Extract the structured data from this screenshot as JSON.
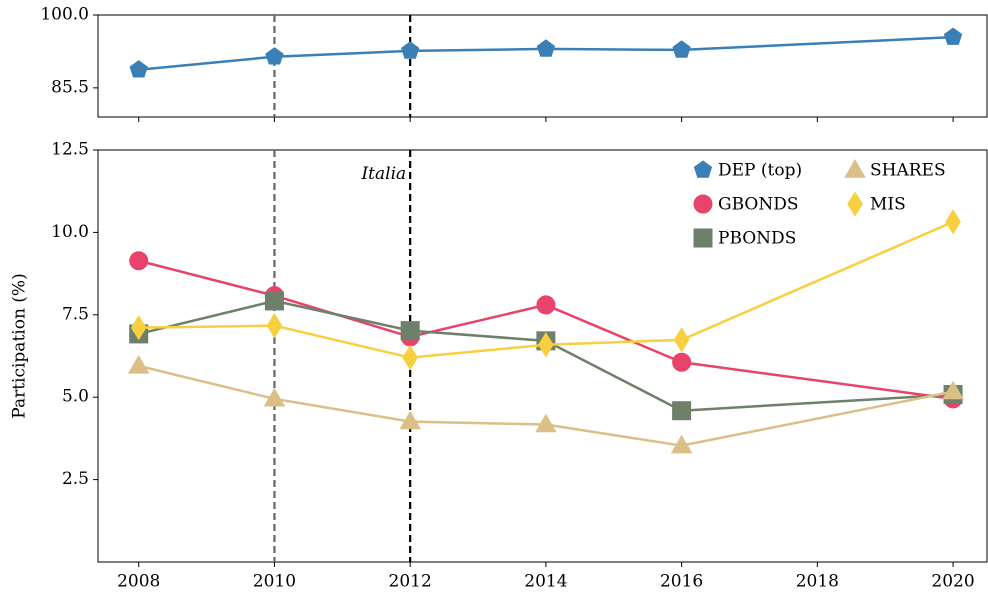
{
  "chart_data": [
    {
      "type": "line",
      "ylim": [
        79.7,
        100
      ],
      "yticks": [
        85.5,
        {
          "value": 100,
          "label": "100.0"
        }
      ],
      "xlim": [
        2007.4,
        2020.5
      ],
      "x": [
        2008,
        2010,
        2012,
        2014,
        2016,
        2020
      ],
      "series": [
        {
          "name": "DEP (top)",
          "color": "#3a7fb5",
          "marker": "pentagon",
          "values": [
            89.1,
            91.7,
            92.85,
            93.25,
            93.05,
            95.6
          ]
        }
      ]
    },
    {
      "type": "line",
      "y_label": "Participation (%)",
      "ylim": [
        0,
        12.5
      ],
      "yticks": [
        2.5,
        {
          "value": 5,
          "label": "5.0"
        },
        7.5,
        {
          "value": 10,
          "label": "10.0"
        },
        12.5
      ],
      "xlim": [
        2007.4,
        2020.5
      ],
      "xticks": [
        2008,
        2010,
        2012,
        2014,
        2016,
        2018,
        2020
      ],
      "x": [
        2008,
        2010,
        2012,
        2014,
        2016,
        2020
      ],
      "legend": "upper right",
      "vlines": [
        {
          "x": 2010,
          "color": "#666666"
        },
        {
          "x": 2012,
          "color": "#000000"
        }
      ],
      "annotation": {
        "text": "Italia",
        "x": 2012,
        "y": 11.75
      },
      "series": [
        {
          "name": "GBONDS",
          "color": "#e8436a",
          "marker": "circle",
          "values": [
            9.14,
            8.08,
            6.83,
            7.8,
            6.06,
            4.95
          ]
        },
        {
          "name": "PBONDS",
          "color": "#6e7f6a",
          "marker": "square",
          "values": [
            6.92,
            7.92,
            7.02,
            6.71,
            4.59,
            5.08
          ]
        },
        {
          "name": "SHARES",
          "color": "#dbbf86",
          "marker": "triangle",
          "values": [
            5.95,
            4.95,
            4.26,
            4.17,
            3.53,
            5.17
          ]
        },
        {
          "name": "MIS",
          "color": "#f8cf3e",
          "marker": "diamond",
          "values": [
            7.11,
            7.17,
            6.2,
            6.59,
            6.74,
            10.32
          ]
        }
      ]
    }
  ]
}
